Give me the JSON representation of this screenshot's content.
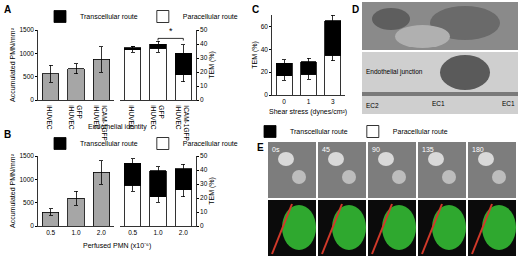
{
  "chart_data": [
    {
      "panel": "A",
      "type": "bar",
      "ylabel": "Accumulated PMN/mm²",
      "xlabel": "Endothelial identity",
      "categories": [
        "iHUVEC",
        "GFP iHUVEC",
        "ICAM-1GFP iHUVEC"
      ],
      "values": [
        560,
        670,
        870
      ],
      "errors": [
        180,
        110,
        270
      ],
      "color": "#a6a6a6",
      "ylim": [
        0,
        1500
      ],
      "yticks": [
        0,
        500,
        1000,
        1500
      ]
    },
    {
      "panel": "A",
      "type": "bar",
      "stacked": true,
      "ylabel": "TEM (%)",
      "legend": "top",
      "categories": [
        "iHUVEC",
        "GFP iHUVEC",
        "ICAM-1GFP iHUVEC"
      ],
      "series": [
        {
          "name": "Paracellular route",
          "color": "#ffffff",
          "values": [
            36,
            37,
            18
          ],
          "errors": [
            2,
            3,
            5
          ]
        },
        {
          "name": "Transcellular route",
          "color": "#000000",
          "values": [
            1.5,
            3,
            15.5
          ],
          "errors": [
            1,
            2,
            6
          ]
        }
      ],
      "ylim": [
        0,
        50
      ],
      "yticks": [
        0,
        10,
        20,
        30,
        40,
        50
      ],
      "annotations": [
        {
          "text": "*",
          "categories": [
            "GFP iHUVEC",
            "ICAM-1GFP iHUVEC"
          ]
        }
      ]
    },
    {
      "panel": "B",
      "type": "bar",
      "ylabel": "Accumulated PMN/mm²",
      "xlabel": "Perfused PMN (x10⁻⁶)",
      "categories": [
        "0.5",
        "1.0",
        "2.0"
      ],
      "values": [
        300,
        600,
        1150
      ],
      "errors": [
        70,
        150,
        250
      ],
      "color": "#a6a6a6",
      "ylim": [
        0,
        1500
      ],
      "yticks": [
        0,
        500,
        1000,
        1500
      ]
    },
    {
      "panel": "B",
      "type": "bar",
      "stacked": true,
      "ylabel": "TEM (%)",
      "legend": "top",
      "categories": [
        "0.5",
        "1.0",
        "2.0"
      ],
      "series": [
        {
          "name": "Paracellular route",
          "color": "#ffffff",
          "values": [
            29,
            21,
            26
          ],
          "errors": [
            4,
            4,
            5
          ]
        },
        {
          "name": "Transcellular route",
          "color": "#000000",
          "values": [
            16,
            18.5,
            15
          ],
          "errors": [
            3,
            3,
            3
          ]
        }
      ],
      "ylim": [
        0,
        50
      ],
      "yticks": [
        0,
        10,
        20,
        30,
        40,
        50
      ]
    },
    {
      "panel": "C",
      "type": "bar",
      "stacked": true,
      "ylabel": "TEM (%)",
      "xlabel": "Shear stress (dynes/cm²)",
      "legend": "bottom",
      "categories": [
        "0",
        "1",
        "3"
      ],
      "series": [
        {
          "name": "Paracellular route",
          "color": "#ffffff",
          "values": [
            17,
            18,
            35
          ],
          "errors": [
            4,
            4,
            5
          ]
        },
        {
          "name": "Transcellular route",
          "color": "#000000",
          "values": [
            11,
            11,
            30
          ],
          "errors": [
            3,
            3,
            5
          ]
        }
      ],
      "ylim": [
        0,
        70
      ],
      "yticks": [
        0,
        20,
        40,
        60
      ]
    }
  ],
  "images": [
    {
      "panel": "D",
      "labels": [
        "Endothelial junction",
        "EC1",
        "EC2",
        "EC1"
      ]
    },
    {
      "panel": "E",
      "times": [
        "0s",
        "45",
        "90",
        "135",
        "180"
      ]
    }
  ]
}
